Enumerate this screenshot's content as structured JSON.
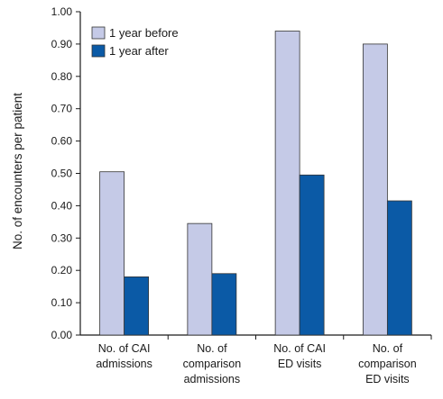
{
  "chart_data": {
    "type": "bar",
    "ylabel": "No. of encounters per patient",
    "xlabel": "",
    "ylim": [
      0,
      1.0
    ],
    "y_ticks": [
      "0.00",
      "0.10",
      "0.20",
      "0.30",
      "0.40",
      "0.50",
      "0.60",
      "0.70",
      "0.80",
      "0.90",
      "1.00"
    ],
    "categories": [
      [
        "No. of CAI",
        "admissions"
      ],
      [
        "No. of",
        "comparison",
        "admissions"
      ],
      [
        "No. of CAI",
        "ED visits"
      ],
      [
        "No. of",
        "comparison",
        "ED visits"
      ]
    ],
    "series": [
      {
        "name": "1 year before",
        "color": "#c5cae7",
        "values": [
          0.505,
          0.345,
          0.94,
          0.9
        ]
      },
      {
        "name": "1 year after",
        "color": "#0b5aa6",
        "values": [
          0.18,
          0.19,
          0.495,
          0.415
        ]
      }
    ],
    "grid": false,
    "legend_position": "top-left"
  }
}
